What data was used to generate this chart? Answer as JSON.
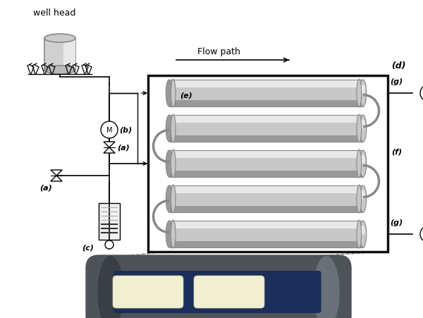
{
  "bg_color": "#ffffff",
  "box_color": "#111111",
  "tube_light": "#e8e8e8",
  "tube_mid": "#c8c8c8",
  "tube_dark": "#999999",
  "tube_shadow": "#888888",
  "gray_dark": "#4d5358",
  "gray_mid": "#888888",
  "blue_dark": "#1c2e5a",
  "cream": "#f0f0d0",
  "flow_path_text": "Flow path",
  "label_a": "(a)",
  "label_b": "(b)",
  "label_c": "(c)",
  "label_d": "(d)",
  "label_e": "(e)",
  "label_f": "(f)",
  "label_g": "(g)",
  "n_tubes": 5,
  "wh_text": "well head",
  "figw": 6.0,
  "figh": 4.52,
  "dpi": 100
}
